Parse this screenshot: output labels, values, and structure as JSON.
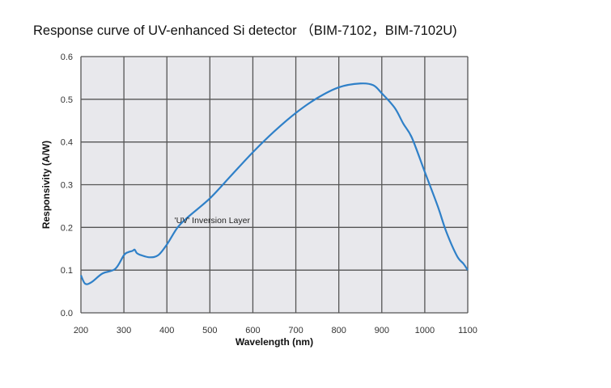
{
  "chart_data": {
    "type": "line",
    "title": "Response curve of UV-enhanced Si detector （BIM-7102，BIM-7102U)",
    "xlabel": "Wavelength (nm)",
    "ylabel": "Responsivity (A/W)",
    "xlim": [
      200,
      1100
    ],
    "ylim": [
      0.0,
      0.6
    ],
    "xticks": [
      "200",
      "300",
      "400",
      "500",
      "600",
      "700",
      "800",
      "900",
      "1000",
      "1100"
    ],
    "yticks": [
      "0.0",
      "0.1",
      "0.2",
      "0.3",
      "0.4",
      "0.5",
      "0.6"
    ],
    "grid": true,
    "background_color": "#e8e8ec",
    "line_color": "#2f80c8",
    "annotation": {
      "text": "'UV' Inversion Layer",
      "x": 463,
      "y": 0.218
    },
    "series": [
      {
        "x": [
          200,
          210,
          225,
          250,
          280,
          300,
          310,
          320,
          325,
          330,
          340,
          360,
          380,
          400,
          425,
          450,
          500,
          550,
          600,
          650,
          700,
          750,
          800,
          850,
          880,
          900,
          930,
          950,
          970,
          1000,
          1030,
          1050,
          1075,
          1090,
          1100
        ],
        "y": [
          0.088,
          0.068,
          0.072,
          0.092,
          0.103,
          0.135,
          0.142,
          0.145,
          0.148,
          0.14,
          0.135,
          0.13,
          0.135,
          0.16,
          0.2,
          0.225,
          0.268,
          0.322,
          0.376,
          0.425,
          0.468,
          0.503,
          0.528,
          0.537,
          0.533,
          0.514,
          0.48,
          0.443,
          0.41,
          0.33,
          0.25,
          0.19,
          0.133,
          0.115,
          0.1
        ]
      }
    ]
  }
}
